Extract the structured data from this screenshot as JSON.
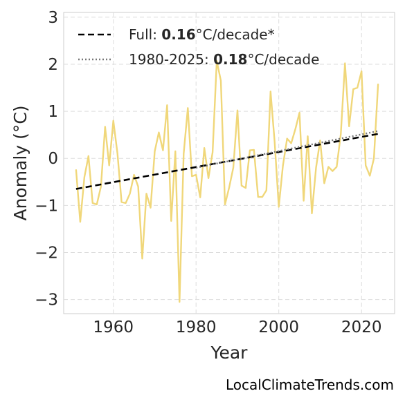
{
  "chart_data": {
    "type": "line",
    "xlabel": "Year",
    "ylabel": "Anomaly (°C)",
    "xlim": [
      1948,
      2028
    ],
    "ylim": [
      -3.3,
      3.1
    ],
    "xticks": [
      1960,
      1980,
      2000,
      2020
    ],
    "yticks": [
      3,
      2,
      1,
      0,
      -1,
      -2,
      -3
    ],
    "ytick_labels": [
      "3",
      "2",
      "1",
      "0",
      "−1",
      "−2",
      "−3"
    ],
    "grid": true,
    "legend_position": "top-left",
    "series": [
      {
        "type": "line",
        "color": "#f0d77a",
        "x": [
          1951,
          1952,
          1953,
          1954,
          1955,
          1956,
          1957,
          1958,
          1959,
          1960,
          1961,
          1962,
          1963,
          1964,
          1965,
          1966,
          1967,
          1968,
          1969,
          1970,
          1971,
          1972,
          1973,
          1974,
          1975,
          1976,
          1977,
          1978,
          1979,
          1980,
          1981,
          1982,
          1983,
          1984,
          1985,
          1986,
          1987,
          1988,
          1989,
          1990,
          1991,
          1992,
          1993,
          1994,
          1995,
          1996,
          1997,
          1998,
          1999,
          2000,
          2001,
          2002,
          2003,
          2004,
          2005,
          2006,
          2007,
          2008,
          2009,
          2010,
          2011,
          2012,
          2013,
          2014,
          2015,
          2016,
          2017,
          2018,
          2019,
          2020,
          2021,
          2022,
          2023,
          2024
        ],
        "y": [
          -0.25,
          -1.35,
          -0.4,
          0.05,
          -0.95,
          -0.98,
          -0.6,
          0.67,
          -0.15,
          0.8,
          0.1,
          -0.93,
          -0.95,
          -0.75,
          -0.35,
          -0.6,
          -2.13,
          -0.75,
          -1.05,
          0.15,
          0.55,
          0.17,
          1.13,
          -1.33,
          0.15,
          -3.05,
          0.1,
          1.07,
          -0.38,
          -0.35,
          -0.83,
          0.22,
          -0.42,
          0.13,
          2.07,
          1.65,
          -0.98,
          -0.62,
          -0.2,
          1.02,
          -0.58,
          -0.63,
          0.17,
          0.18,
          -0.82,
          -0.82,
          -0.68,
          1.42,
          0.35,
          -1.03,
          -0.15,
          0.42,
          0.32,
          0.62,
          0.97,
          -0.9,
          0.47,
          -1.17,
          -0.2,
          0.38,
          -0.53,
          -0.18,
          -0.27,
          -0.18,
          0.52,
          2.02,
          0.68,
          1.47,
          1.5,
          1.85,
          -0.15,
          -0.37,
          0.0,
          1.57
        ]
      },
      {
        "type": "line",
        "style": "dashed",
        "color": "#000000",
        "x": [
          1951,
          2024
        ],
        "y": [
          -0.65,
          0.52
        ]
      },
      {
        "type": "line",
        "style": "dotted",
        "color": "#777777",
        "x": [
          1980,
          2024
        ],
        "y": [
          -0.2,
          0.58
        ]
      }
    ],
    "legend": [
      {
        "prefix": "Full: ",
        "value": "0.16",
        "suffix": "°C/decade*",
        "style": "dashed",
        "color": "#000000"
      },
      {
        "prefix": "1980-2025: ",
        "value": "0.18",
        "suffix": "°C/decade",
        "style": "dotted",
        "color": "#777777"
      }
    ]
  },
  "watermark": "LocalClimateTrends.com"
}
